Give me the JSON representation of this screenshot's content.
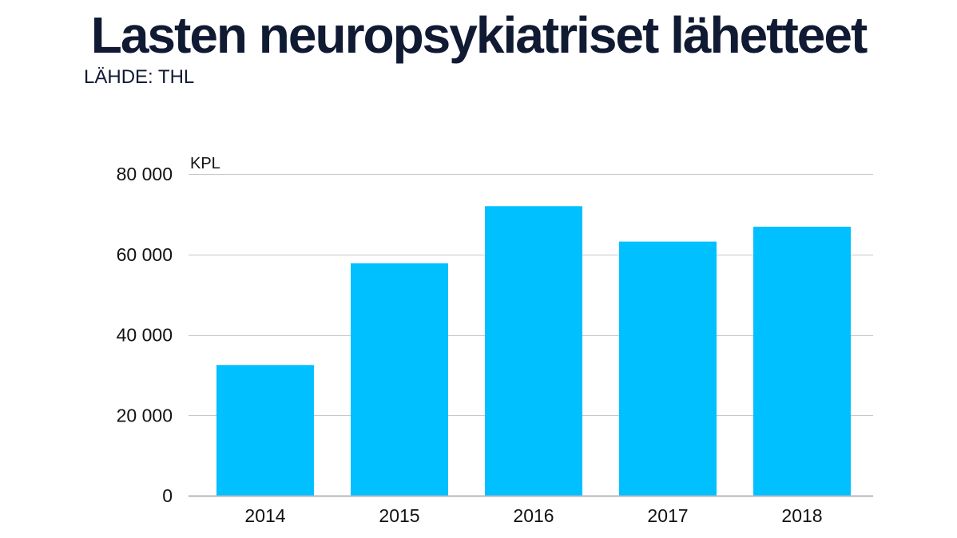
{
  "chart_data": {
    "type": "bar",
    "title": "Lasten neuropsykiatriset lähetteet",
    "subtitle": "LÄHDE: THL",
    "ylabel": "KPL",
    "xlabel": "",
    "categories": [
      "2014",
      "2015",
      "2016",
      "2017",
      "2018"
    ],
    "values": [
      32500,
      57800,
      72000,
      63200,
      66900
    ],
    "ylim": [
      0,
      80000
    ],
    "yticks": [
      0,
      20000,
      40000,
      60000,
      80000
    ],
    "ytick_labels": [
      "0",
      "20 000",
      "40 000",
      "60 000",
      "80 000"
    ],
    "grid": true,
    "bar_color": "#00c0ff",
    "grid_color": "#c8c8c8",
    "axis_color": "#b4b4bc"
  }
}
